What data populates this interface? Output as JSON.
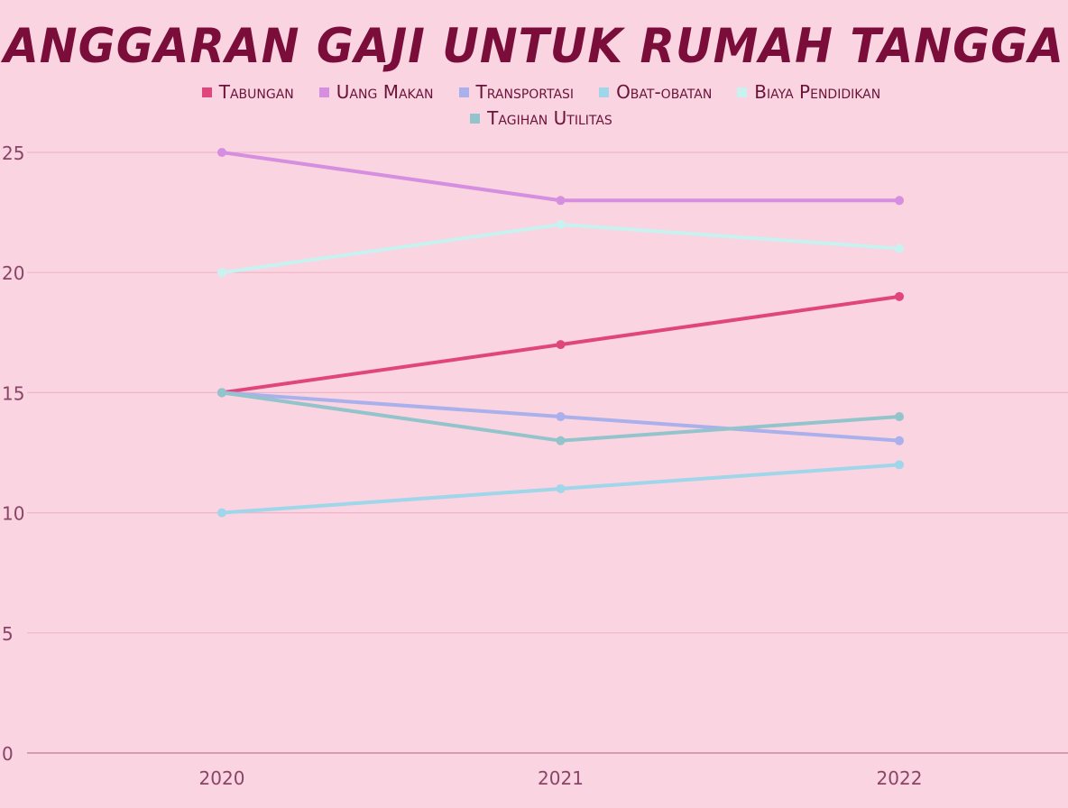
{
  "chart_data": {
    "type": "line",
    "title": "ANGGARAN GAJI UNTUK RUMAH TANGGA",
    "x": [
      "2020",
      "2021",
      "2022"
    ],
    "ylim": [
      0,
      25
    ],
    "yticks": [
      0,
      5,
      10,
      15,
      20,
      25
    ],
    "grid": true,
    "legend_placement": "top",
    "series": [
      {
        "name": "Tabungan",
        "values": [
          15,
          17,
          19
        ],
        "color": "#e0457b"
      },
      {
        "name": "Uang Makan",
        "values": [
          25,
          23,
          23
        ],
        "color": "#d68ee0"
      },
      {
        "name": "Transportasi",
        "values": [
          15,
          14,
          13
        ],
        "color": "#a9b0ec"
      },
      {
        "name": "Obat-obatan",
        "values": [
          10,
          11,
          12
        ],
        "color": "#9fd6ea"
      },
      {
        "name": "Biaya Pendidikan",
        "values": [
          20,
          22,
          21
        ],
        "color": "#c8f2f0"
      },
      {
        "name": "Tagihan Utilitas",
        "values": [
          15,
          13,
          14
        ],
        "color": "#93c4cc"
      }
    ]
  }
}
